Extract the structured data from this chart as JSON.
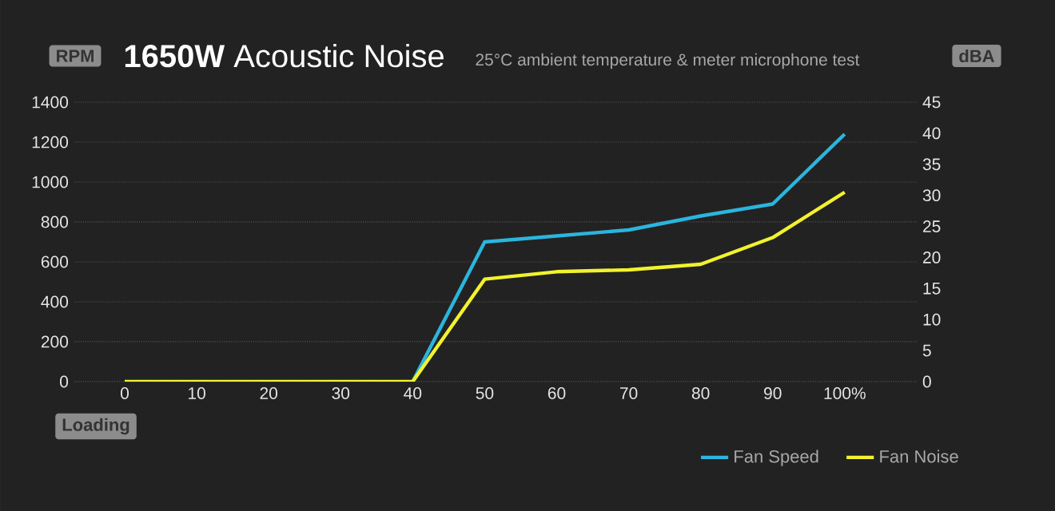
{
  "chart_data": {
    "type": "line",
    "title": "**1650W** Acoustic Noise",
    "subtitle": "25°C ambient temperature & meter microphone test",
    "xlabel": "Loading",
    "ylabel": "RPM",
    "y2label": "dBA",
    "x": [
      0,
      10,
      20,
      30,
      40,
      50,
      60,
      70,
      80,
      90,
      100
    ],
    "series": [
      {
        "name": "Fan Speed",
        "color": "#2bb5dd",
        "values": [
          null,
          null,
          null,
          null,
          0,
          700,
          730,
          760,
          830,
          890,
          1240
        ]
      },
      {
        "name": "Fan Noise",
        "color": "#f2f22e",
        "axis": "y2",
        "values": [
          0,
          0,
          0,
          0,
          0,
          16.5,
          17.7,
          18.0,
          18.9,
          23.2,
          30.5
        ]
      }
    ],
    "xlim": [
      -7,
      110
    ],
    "xticks": [
      0,
      10,
      20,
      30,
      40,
      50,
      60,
      70,
      80,
      90,
      {
        "value": 100,
        "label": "100%"
      }
    ],
    "ylim": [
      0,
      1400
    ],
    "yticks": [
      0,
      200,
      400,
      600,
      800,
      1000,
      1200,
      1400
    ],
    "y2lim": [
      0,
      45
    ],
    "y2ticks": [
      0,
      5,
      10,
      15,
      20,
      25,
      30,
      35,
      40,
      45
    ],
    "grid": "y",
    "legend": "bottom right",
    "marker": "none",
    "line_style": "solid"
  }
}
